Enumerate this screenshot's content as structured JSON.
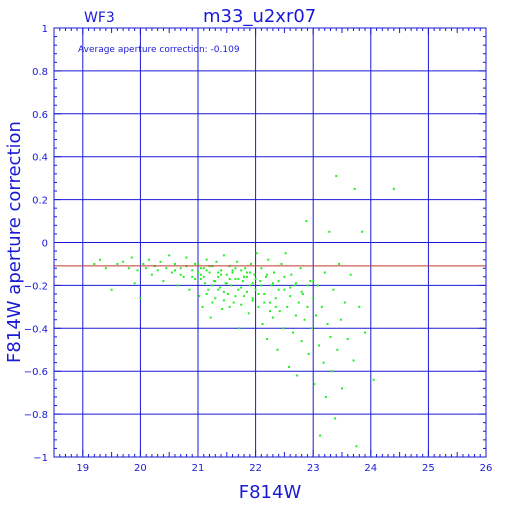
{
  "header": {
    "chip": "WF3",
    "title": "m33_u2xr07"
  },
  "annotation": "Average aperture correction: -0.109",
  "colors": {
    "axis": "#1a1ad6",
    "grid": "#1a1ad6",
    "points": "#22ee22",
    "average_line": "#c0392b",
    "background": "#ffffff"
  },
  "chart_data": {
    "type": "scatter",
    "title": "m33_u2xr07",
    "subtitle": "WF3",
    "xlabel": "F814W",
    "ylabel": "F814W aperture correction",
    "xlim": [
      18.5,
      26
    ],
    "ylim": [
      -1,
      1
    ],
    "xticks": [
      "19",
      "20",
      "21",
      "22",
      "23",
      "24",
      "25",
      "26"
    ],
    "yticks": [
      "1",
      "0.8",
      "0.6",
      "0.4",
      "0.2",
      "0",
      "−0.2",
      "−0.4",
      "−0.6",
      "−0.8",
      "−1"
    ],
    "grid": true,
    "average": -0.109,
    "series": [
      {
        "points": [
          [
            19.2,
            -0.1
          ],
          [
            19.3,
            -0.08
          ],
          [
            19.4,
            -0.12
          ],
          [
            19.5,
            -0.22
          ],
          [
            19.6,
            -0.1
          ],
          [
            19.7,
            -0.09
          ],
          [
            19.8,
            -0.12
          ],
          [
            19.85,
            -0.07
          ],
          [
            19.9,
            -0.19
          ],
          [
            19.95,
            -0.13
          ],
          [
            20.0,
            -0.26
          ],
          [
            20.05,
            -0.1
          ],
          [
            20.1,
            -0.12
          ],
          [
            20.15,
            -0.08
          ],
          [
            20.2,
            -0.15
          ],
          [
            20.25,
            -0.11
          ],
          [
            20.3,
            -0.13
          ],
          [
            20.35,
            -0.09
          ],
          [
            20.4,
            -0.18
          ],
          [
            20.45,
            -0.12
          ],
          [
            20.5,
            -0.06
          ],
          [
            20.55,
            -0.14
          ],
          [
            20.6,
            -0.1
          ],
          [
            20.65,
            -0.2
          ],
          [
            20.7,
            -0.12
          ],
          [
            20.75,
            -0.16
          ],
          [
            20.8,
            -0.07
          ],
          [
            20.85,
            -0.22
          ],
          [
            20.9,
            -0.13
          ],
          [
            20.95,
            -0.17
          ],
          [
            21.0,
            -0.1
          ],
          [
            21.02,
            -0.25
          ],
          [
            21.05,
            -0.15
          ],
          [
            21.08,
            -0.3
          ],
          [
            21.1,
            -0.12
          ],
          [
            21.12,
            -0.19
          ],
          [
            21.15,
            -0.08
          ],
          [
            21.18,
            -0.22
          ],
          [
            21.2,
            -0.14
          ],
          [
            21.22,
            -0.35
          ],
          [
            21.25,
            -0.11
          ],
          [
            21.28,
            -0.18
          ],
          [
            21.3,
            -0.26
          ],
          [
            21.32,
            -0.09
          ],
          [
            21.35,
            -0.16
          ],
          [
            21.38,
            -0.21
          ],
          [
            21.4,
            -0.13
          ],
          [
            21.42,
            -0.31
          ],
          [
            21.45,
            -0.06
          ],
          [
            21.48,
            -0.19
          ],
          [
            21.5,
            -0.15
          ],
          [
            21.52,
            -0.24
          ],
          [
            21.55,
            -0.11
          ],
          [
            21.58,
            -0.2
          ],
          [
            21.6,
            -0.14
          ],
          [
            21.62,
            -0.28
          ],
          [
            21.65,
            -0.17
          ],
          [
            21.68,
            -0.09
          ],
          [
            21.7,
            -0.22
          ],
          [
            21.72,
            -0.4
          ],
          [
            21.75,
            -0.13
          ],
          [
            21.78,
            -0.18
          ],
          [
            21.8,
            -0.25
          ],
          [
            21.82,
            -0.12
          ],
          [
            21.85,
            -0.16
          ],
          [
            21.88,
            -0.33
          ],
          [
            21.9,
            -0.2
          ],
          [
            21.92,
            -0.1
          ],
          [
            21.95,
            -0.27
          ],
          [
            21.98,
            -0.15
          ],
          [
            22.0,
            -0.22
          ],
          [
            22.02,
            -0.05
          ],
          [
            22.05,
            -0.3
          ],
          [
            22.08,
            -0.18
          ],
          [
            22.1,
            -0.12
          ],
          [
            22.12,
            -0.38
          ],
          [
            22.15,
            -0.24
          ],
          [
            22.18,
            -0.16
          ],
          [
            22.2,
            -0.45
          ],
          [
            22.22,
            -0.08
          ],
          [
            22.25,
            -0.28
          ],
          [
            22.28,
            -0.2
          ],
          [
            22.3,
            -0.35
          ],
          [
            22.32,
            -0.14
          ],
          [
            22.35,
            -0.26
          ],
          [
            22.38,
            -0.5
          ],
          [
            22.4,
            -0.18
          ],
          [
            22.42,
            -0.32
          ],
          [
            22.45,
            -0.1
          ],
          [
            22.48,
            -0.4
          ],
          [
            22.5,
            -0.22
          ],
          [
            22.52,
            -0.05
          ],
          [
            22.55,
            -0.3
          ],
          [
            22.58,
            -0.58
          ],
          [
            22.6,
            -0.25
          ],
          [
            22.62,
            -0.15
          ],
          [
            22.65,
            -0.42
          ],
          [
            22.68,
            -0.2
          ],
          [
            22.7,
            -0.34
          ],
          [
            22.72,
            -0.62
          ],
          [
            22.75,
            -0.28
          ],
          [
            22.78,
            -0.12
          ],
          [
            22.8,
            -0.46
          ],
          [
            22.82,
            -0.24
          ],
          [
            22.85,
            -0.36
          ],
          [
            22.88,
            0.1
          ],
          [
            22.9,
            -0.3
          ],
          [
            22.92,
            -0.52
          ],
          [
            22.95,
            -0.18
          ],
          [
            22.98,
            -0.4
          ],
          [
            23.0,
            -0.26
          ],
          [
            23.02,
            -0.66
          ],
          [
            23.05,
            -0.34
          ],
          [
            23.08,
            -0.2
          ],
          [
            23.1,
            -0.48
          ],
          [
            23.12,
            -0.9
          ],
          [
            23.15,
            -0.3
          ],
          [
            23.18,
            -0.56
          ],
          [
            23.2,
            -0.14
          ],
          [
            23.22,
            -0.72
          ],
          [
            23.25,
            -0.38
          ],
          [
            23.28,
            0.05
          ],
          [
            23.3,
            -0.44
          ],
          [
            23.32,
            -0.6
          ],
          [
            23.35,
            -0.22
          ],
          [
            23.38,
            -0.82
          ],
          [
            23.4,
            0.31
          ],
          [
            23.42,
            -0.5
          ],
          [
            23.45,
            -0.1
          ],
          [
            23.48,
            -0.36
          ],
          [
            23.5,
            -0.68
          ],
          [
            23.55,
            -0.28
          ],
          [
            23.6,
            -0.45
          ],
          [
            23.65,
            -0.15
          ],
          [
            23.7,
            -0.55
          ],
          [
            23.72,
            0.25
          ],
          [
            23.75,
            -0.95
          ],
          [
            23.8,
            -0.3
          ],
          [
            23.85,
            0.05
          ],
          [
            23.9,
            -0.42
          ],
          [
            24.05,
            -0.64
          ],
          [
            24.4,
            0.25
          ],
          [
            21.05,
            -0.17
          ],
          [
            21.15,
            -0.13
          ],
          [
            21.25,
            -0.2
          ],
          [
            21.35,
            -0.14
          ],
          [
            21.45,
            -0.23
          ],
          [
            21.55,
            -0.17
          ],
          [
            21.65,
            -0.12
          ],
          [
            21.75,
            -0.21
          ],
          [
            21.85,
            -0.14
          ],
          [
            21.95,
            -0.19
          ],
          [
            21.1,
            -0.16
          ],
          [
            21.2,
            -0.11
          ],
          [
            21.3,
            -0.18
          ],
          [
            21.4,
            -0.15
          ],
          [
            21.5,
            -0.19
          ],
          [
            21.6,
            -0.13
          ],
          [
            21.7,
            -0.17
          ],
          [
            21.8,
            -0.16
          ],
          [
            21.9,
            -0.14
          ],
          [
            22.0,
            -0.17
          ],
          [
            22.1,
            -0.2
          ],
          [
            22.2,
            -0.15
          ],
          [
            22.3,
            -0.19
          ],
          [
            22.4,
            -0.22
          ],
          [
            22.5,
            -0.16
          ],
          [
            22.6,
            -0.21
          ],
          [
            22.7,
            -0.19
          ],
          [
            22.8,
            -0.23
          ],
          [
            22.9,
            -0.2
          ],
          [
            23.0,
            -0.18
          ],
          [
            20.6,
            -0.13
          ],
          [
            20.7,
            -0.15
          ],
          [
            20.8,
            -0.11
          ],
          [
            20.9,
            -0.16
          ],
          [
            21.0,
            -0.14
          ],
          [
            20.95,
            -0.1
          ],
          [
            21.05,
            -0.12
          ],
          [
            21.15,
            -0.24
          ],
          [
            21.25,
            -0.28
          ],
          [
            21.35,
            -0.22
          ],
          [
            21.45,
            -0.27
          ],
          [
            21.55,
            -0.3
          ],
          [
            21.65,
            -0.25
          ],
          [
            21.75,
            -0.29
          ],
          [
            21.85,
            -0.23
          ],
          [
            21.95,
            -0.26
          ],
          [
            22.05,
            -0.24
          ],
          [
            22.15,
            -0.28
          ],
          [
            22.25,
            -0.32
          ],
          [
            22.35,
            -0.3
          ]
        ]
      }
    ]
  }
}
